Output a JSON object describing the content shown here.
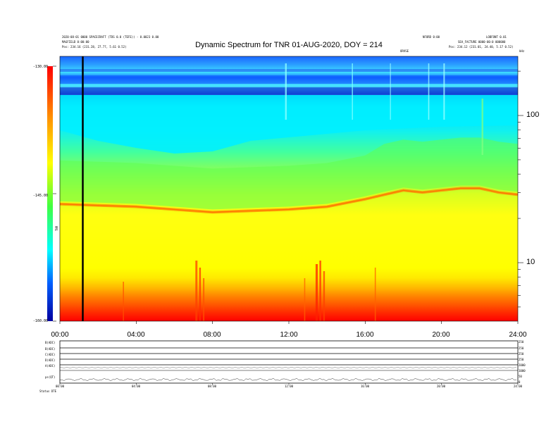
{
  "header": {
    "left_line1": "2020-08-01 0000 SPACECRAFT (TDS 0.0 (TEFE)) - 0.0023 0.00",
    "left_line2": "MAGFIELD  0:00:00",
    "left_line3": "Pos:  234.16 (231.28, 27.77, 5.61 0.52)",
    "right_line1": "LOBFONT 0.01",
    "right_line2": "SEA_FACTURE 0000-00:0 000000",
    "right_line3": "Pos:  234.12 (231.01, 24.40, 5.17 0.52)",
    "right_mid": "NFORD 0:00",
    "right_small": "ORVSE",
    "corner_mark": "kHz"
  },
  "chart_data": {
    "type": "heatmap",
    "title": "Dynamic Spectrum for TNR 01-AUG-2020, DOY = 214",
    "x_ticks": [
      "00:00",
      "04:00",
      "08:00",
      "12:00",
      "16:00",
      "20:00",
      "24:00"
    ],
    "x_range_hours": [
      0,
      24
    ],
    "y_scale": "log",
    "y_ticks_right": [
      "100",
      "10"
    ],
    "y_unit_right": "kHz",
    "colorbar_ticks": [
      "-130.00",
      "-145.00",
      "-160.00"
    ],
    "colorbar_range": [
      -160,
      -130
    ],
    "colorbar_label": "TNR",
    "colors": [
      "#0000aa",
      "#0060ff",
      "#00ffff",
      "#60ff60",
      "#ffff00",
      "#ffa000",
      "#ff0000"
    ],
    "features": {
      "cutoff_line_hour": 1.2,
      "ridge_hours": [
        0,
        4,
        8,
        12,
        14,
        16,
        17,
        18,
        19,
        20,
        21,
        22,
        22.5,
        23,
        24
      ],
      "ridge_freq_khz": [
        25,
        24,
        22,
        23,
        24,
        27,
        29,
        31,
        30,
        31,
        32,
        32,
        31,
        30,
        29
      ]
    }
  },
  "bottom_panels": {
    "left_labels": [
      "B(ADC)",
      "B(ADC)",
      "C(ADC)",
      "D(ADC)",
      "A(ADC)",
      "ps(QT)"
    ],
    "right_labels": [
      "250",
      "250",
      "250",
      "250",
      "2000",
      "1000",
      "50",
      "0"
    ],
    "x_ticks": [
      "00:00",
      "04:00",
      "08:00",
      "12:00",
      "16:00",
      "20:00",
      "24:00"
    ],
    "footer_left": "Status  DTE"
  }
}
